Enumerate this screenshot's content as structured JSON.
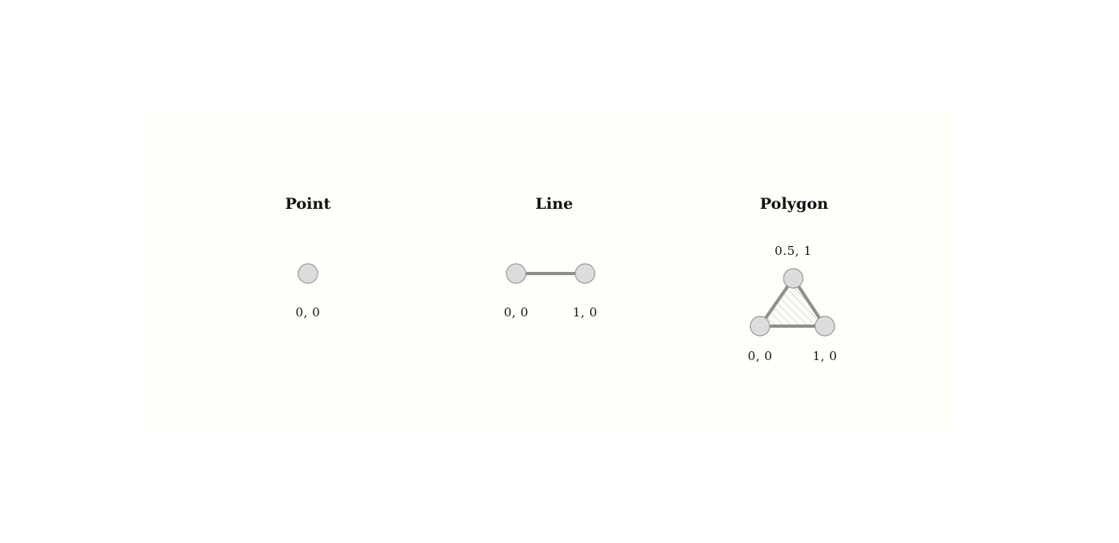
{
  "colors": {
    "background": "#ffffff",
    "panel": "#fffff9",
    "vertex_fill": "#dcdcdc",
    "vertex_stroke": "#9a9a9a",
    "edge": "#8e8e8e",
    "text": "#111111"
  },
  "geometries": [
    {
      "id": "point",
      "title": "Point",
      "vertices": [
        {
          "x": 0,
          "y": 0,
          "label": "0, 0"
        }
      ]
    },
    {
      "id": "line",
      "title": "Line",
      "vertices": [
        {
          "x": 0,
          "y": 0,
          "label": "0, 0"
        },
        {
          "x": 1,
          "y": 0,
          "label": "1, 0"
        }
      ]
    },
    {
      "id": "polygon",
      "title": "Polygon",
      "vertices": [
        {
          "x": 0.5,
          "y": 1,
          "label": "0.5, 1"
        },
        {
          "x": 0,
          "y": 0,
          "label": "0, 0"
        },
        {
          "x": 1,
          "y": 0,
          "label": "1, 0"
        }
      ]
    }
  ]
}
